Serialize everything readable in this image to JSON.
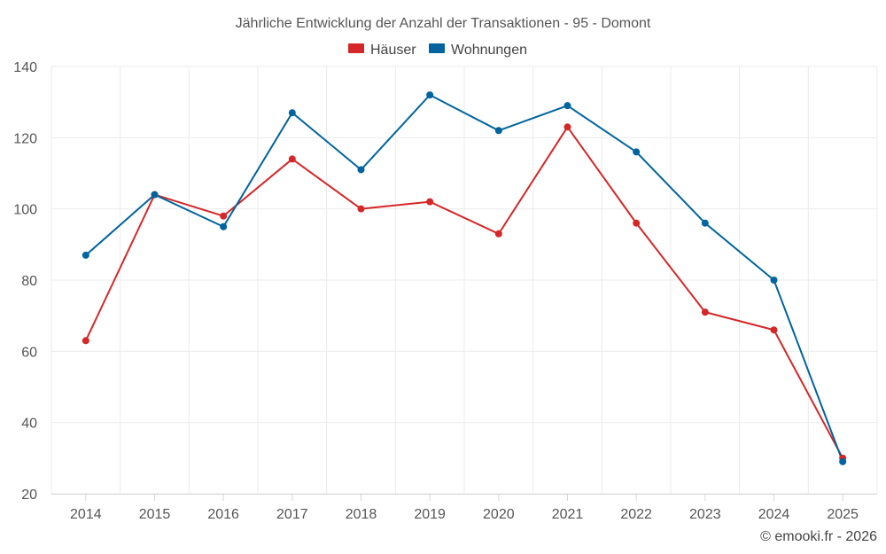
{
  "chart_data": {
    "type": "line",
    "title": "Jährliche Entwicklung der Anzahl der Transaktionen - 95 - Domont",
    "categories": [
      "2014",
      "2015",
      "2016",
      "2017",
      "2018",
      "2019",
      "2020",
      "2021",
      "2022",
      "2023",
      "2024",
      "2025"
    ],
    "series": [
      {
        "name": "Häuser",
        "color": "#d62728",
        "values": [
          63,
          104,
          98,
          114,
          100,
          102,
          93,
          123,
          96,
          71,
          66,
          30
        ]
      },
      {
        "name": "Wohnungen",
        "color": "#00649e",
        "values": [
          87,
          104,
          95,
          127,
          111,
          132,
          122,
          129,
          116,
          96,
          80,
          29
        ]
      }
    ],
    "ylim": [
      20,
      140
    ],
    "yticks": [
      "20",
      "40",
      "60",
      "80",
      "100",
      "120",
      "140"
    ],
    "xlabel": "",
    "ylabel": "",
    "grid": true,
    "legend_position": "top-center"
  },
  "credit": "© emooki.fr - 2026"
}
